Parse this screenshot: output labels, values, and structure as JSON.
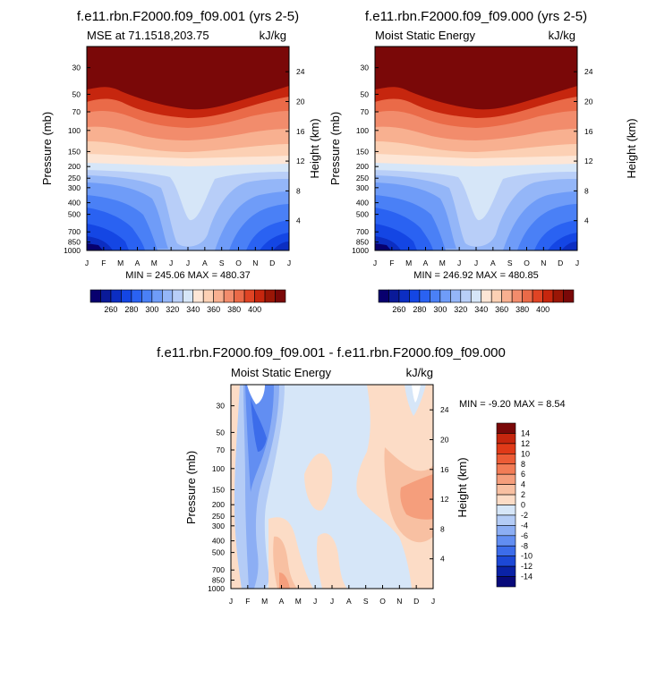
{
  "chart_data": [
    {
      "type": "heatmap",
      "title": "f.e11.rbn.F2000.f09_f09.001 (yrs 2-5)",
      "left_label": "MSE at 71.1518,203.75",
      "right_label": "kJ/kg",
      "ylabel": "Pressure (mb)",
      "y2label": "Height (km)",
      "x_ticks": [
        "J",
        "F",
        "M",
        "A",
        "M",
        "J",
        "J",
        "A",
        "S",
        "O",
        "N",
        "D",
        "J"
      ],
      "pressure_ticks": [
        "30",
        "50",
        "70",
        "100",
        "150",
        "200",
        "250",
        "300",
        "400",
        "500",
        "700",
        "850",
        "1000"
      ],
      "height_ticks": [
        "24",
        "20",
        "16",
        "12",
        "8",
        "4"
      ],
      "stats": "MIN = 245.06 MAX = 480.37",
      "levels_labels": [
        "260",
        "280",
        "300",
        "320",
        "340",
        "360",
        "380",
        "400"
      ],
      "colors": [
        "#08006e",
        "#0a1a98",
        "#0c2ec2",
        "#1446e4",
        "#2a62f2",
        "#4a80f6",
        "#6f9cf8",
        "#94b6f8",
        "#b8cef8",
        "#d6e6f8",
        "#fde6d6",
        "#fcd0b4",
        "#f8b090",
        "#f28c6c",
        "#ea6a48",
        "#e04424",
        "#c6260e",
        "#9a1606",
        "#7a0808"
      ],
      "ylim": [
        1000,
        20
      ]
    },
    {
      "type": "heatmap",
      "title": "f.e11.rbn.F2000.f09_f09.000 (yrs 2-5)",
      "left_label": "Moist Static Energy",
      "right_label": "kJ/kg",
      "ylabel": "Pressure (mb)",
      "y2label": "Height (km)",
      "x_ticks": [
        "J",
        "F",
        "M",
        "A",
        "M",
        "J",
        "J",
        "A",
        "S",
        "O",
        "N",
        "D",
        "J"
      ],
      "pressure_ticks": [
        "30",
        "50",
        "70",
        "100",
        "150",
        "200",
        "250",
        "300",
        "400",
        "500",
        "700",
        "850",
        "1000"
      ],
      "height_ticks": [
        "24",
        "20",
        "16",
        "12",
        "8",
        "4"
      ],
      "stats": "MIN = 246.92 MAX = 480.85",
      "levels_labels": [
        "260",
        "280",
        "300",
        "320",
        "340",
        "360",
        "380",
        "400"
      ],
      "colors": [
        "#08006e",
        "#0a1a98",
        "#0c2ec2",
        "#1446e4",
        "#2a62f2",
        "#4a80f6",
        "#6f9cf8",
        "#94b6f8",
        "#b8cef8",
        "#d6e6f8",
        "#fde6d6",
        "#fcd0b4",
        "#f8b090",
        "#f28c6c",
        "#ea6a48",
        "#e04424",
        "#c6260e",
        "#9a1606",
        "#7a0808"
      ],
      "ylim": [
        1000,
        20
      ]
    },
    {
      "type": "heatmap",
      "title": "f.e11.rbn.F2000.f09_f09.001 - f.e11.rbn.F2000.f09_f09.000",
      "left_label": "Moist Static Energy",
      "right_label": "kJ/kg",
      "ylabel": "Pressure (mb)",
      "y2label": "Height (km)",
      "x_ticks": [
        "J",
        "F",
        "M",
        "A",
        "M",
        "J",
        "J",
        "A",
        "S",
        "O",
        "N",
        "D",
        "J"
      ],
      "pressure_ticks": [
        "30",
        "50",
        "70",
        "100",
        "150",
        "200",
        "250",
        "300",
        "400",
        "500",
        "700",
        "850",
        "1000"
      ],
      "height_ticks": [
        "24",
        "20",
        "16",
        "12",
        "8",
        "4"
      ],
      "stats": "MIN =  -9.20 MAX =   8.54",
      "levels_labels": [
        "14",
        "12",
        "10",
        "8",
        "6",
        "4",
        "2",
        "0",
        "-2",
        "-4",
        "-6",
        "-8",
        "-10",
        "-12",
        "-14"
      ],
      "colors": [
        "#7a0808",
        "#c6260e",
        "#e03a18",
        "#ec5c36",
        "#f27c56",
        "#f59e7c",
        "#f8c0a2",
        "#fcdcc6",
        "#d6e6f8",
        "#b4ccf6",
        "#8caef4",
        "#628ef2",
        "#3c6cea",
        "#1c48d6",
        "#0a22a6",
        "#080a7a"
      ],
      "ylim": [
        1000,
        20
      ]
    }
  ]
}
